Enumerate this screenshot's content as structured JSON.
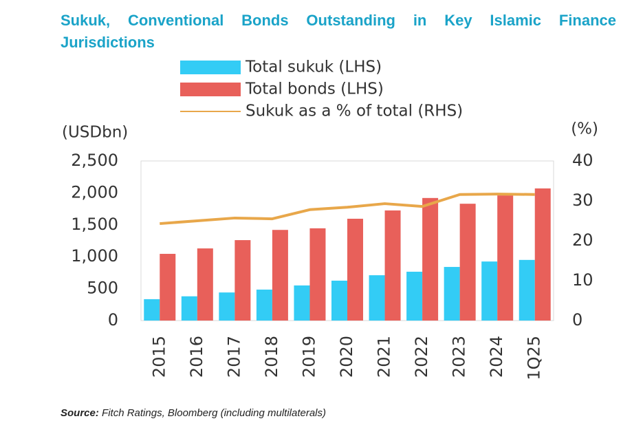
{
  "chart_data": {
    "type": "bar-line",
    "title": "Sukuk, Conventional Bonds Outstanding in Key Islamic Finance Jurisdictions",
    "y_label": "(USDbn)",
    "y2_label": "(%)",
    "categories": [
      "2015",
      "2016",
      "2017",
      "2018",
      "2019",
      "2020",
      "2021",
      "2022",
      "2023",
      "2024",
      "1Q25"
    ],
    "series": [
      {
        "name": "Total sukuk (LHS)",
        "color": "#33ccf5",
        "type": "bar",
        "values": [
          335,
          380,
          440,
          485,
          550,
          625,
          710,
          765,
          840,
          925,
          950
        ]
      },
      {
        "name": "Total bonds (LHS)",
        "color": "#e8605a",
        "type": "bar",
        "values": [
          1045,
          1130,
          1260,
          1420,
          1445,
          1595,
          1725,
          1920,
          1830,
          1960,
          2070
        ]
      },
      {
        "name": "Sukuk as a % of total (RHS)",
        "color": "#e8a74a",
        "type": "line",
        "axis": "y2",
        "values": [
          24.3,
          25.0,
          25.7,
          25.5,
          27.8,
          28.4,
          29.3,
          28.6,
          31.6,
          31.7,
          31.6
        ]
      }
    ],
    "ylim": [
      0,
      2500
    ],
    "yticks": [
      0,
      500,
      {
        "value": 1000,
        "label": "1,000"
      },
      {
        "value": 1500,
        "label": "1,500"
      },
      {
        "value": 2000,
        "label": "2,000"
      },
      {
        "value": 2500,
        "label": "2,500"
      }
    ],
    "y2lim": [
      0,
      40
    ],
    "y2ticks": [
      0,
      10,
      20,
      30,
      40
    ],
    "grid": false,
    "source_label": "Source:",
    "source_text": "Fitch Ratings, Bloomberg (including multilaterals)"
  }
}
